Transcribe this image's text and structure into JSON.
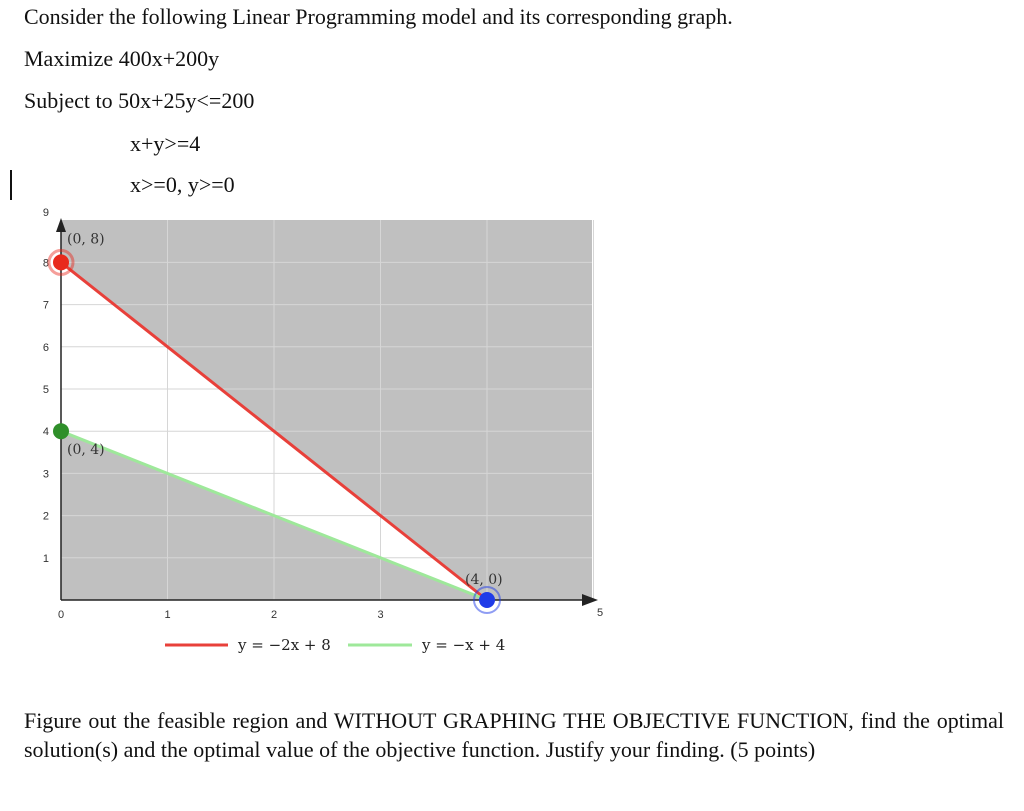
{
  "problem": {
    "intro": "Consider the following Linear Programming model and its corresponding graph.",
    "objective": "Maximize 400x+200y",
    "constraint_1": "Subject to 50x+25y<=200",
    "constraint_2": "x+y>=4",
    "constraint_3": "x>=0, y>=0",
    "question": "Figure out the feasible region and WITHOUT GRAPHING THE OBJECTIVE FUNCTION, find the optimal solution(s) and the optimal value of the objective function. Justify your finding. (5 points)"
  },
  "chart_data": {
    "type": "line",
    "x_ticks": [
      "0",
      "1",
      "2",
      "3",
      "5"
    ],
    "y_ticks": [
      "1",
      "2",
      "3",
      "4",
      "5",
      "6",
      "7",
      "8",
      "9"
    ],
    "xlim": [
      0,
      5
    ],
    "ylim": [
      0,
      9
    ],
    "grid": true,
    "series": [
      {
        "name": "y = −2x + 8",
        "color": "#e8403a",
        "points": [
          [
            0,
            8
          ],
          [
            4,
            0
          ]
        ]
      },
      {
        "name": "y = −x + 4",
        "color": "#9ee89a",
        "points": [
          [
            0,
            4
          ],
          [
            4,
            0
          ]
        ]
      }
    ],
    "points": [
      {
        "label": "(0, 8)",
        "x": 0,
        "y": 8,
        "color": "#e8291c"
      },
      {
        "label": "(0, 4)",
        "x": 0,
        "y": 4,
        "color": "#2f8f2a"
      },
      {
        "label": "(4, 0)",
        "x": 4,
        "y": 0,
        "color": "#1f3be8"
      }
    ],
    "shading": {
      "unshaded_region": [
        [
          0,
          8
        ],
        [
          4,
          0
        ],
        [
          0,
          4
        ]
      ],
      "color": "#c0c0c0"
    },
    "legend_placement": "bottom"
  }
}
